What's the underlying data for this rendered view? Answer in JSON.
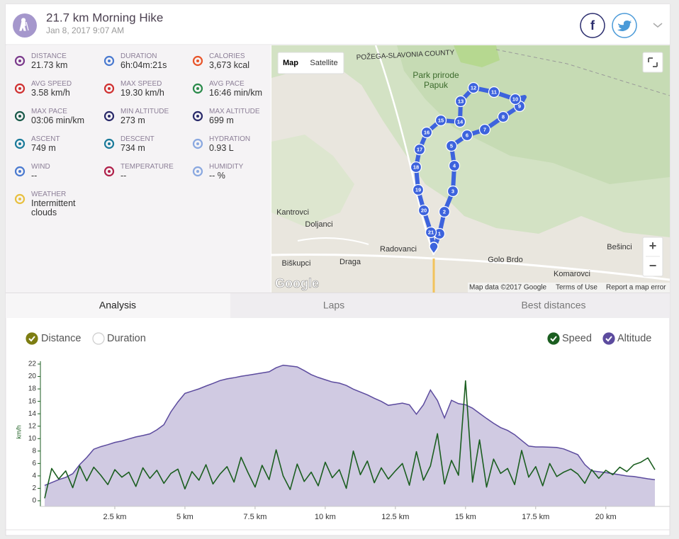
{
  "header": {
    "title": "21.7 km Morning Hike",
    "date": "Jan 8, 2017 9:07 AM",
    "facebook": "f"
  },
  "stats": [
    {
      "label": "DISTANCE",
      "value": "21.73 km"
    },
    {
      "label": "DURATION",
      "value": "6h:04m:21s"
    },
    {
      "label": "CALORIES",
      "value": "3,673 kcal"
    },
    {
      "label": "AVG SPEED",
      "value": "3.58 km/h"
    },
    {
      "label": "MAX SPEED",
      "value": "19.30 km/h"
    },
    {
      "label": "AVG PACE",
      "value": "16:46 min/km"
    },
    {
      "label": "MAX PACE",
      "value": "03:06 min/km"
    },
    {
      "label": "MIN ALTITUDE",
      "value": "273 m"
    },
    {
      "label": "MAX ALTITUDE",
      "value": "699 m"
    },
    {
      "label": "ASCENT",
      "value": "749 m"
    },
    {
      "label": "DESCENT",
      "value": "734 m"
    },
    {
      "label": "HYDRATION",
      "value": "0.93 L"
    },
    {
      "label": "WIND",
      "value": "--"
    },
    {
      "label": "TEMPERATURE",
      "value": "--"
    },
    {
      "label": "HUMIDITY",
      "value": "-- %"
    },
    {
      "label": "WEATHER",
      "value": "Intermittent clouds"
    }
  ],
  "map": {
    "buttons": [
      "Map",
      "Satellite"
    ],
    "zoom": [
      "+",
      "−"
    ],
    "places": [
      "POŽEGA-SLAVONIA COUNTY",
      "Park prirode",
      "Papuk",
      "Kantrovci",
      "Doljanci",
      "Radovanci",
      "Biškupci",
      "Draga",
      "Golo Brdo",
      "Komarovci",
      "Bešinci"
    ],
    "markers": [
      "1",
      "2",
      "3",
      "4",
      "5",
      "6",
      "7",
      "8",
      "9",
      "10",
      "11",
      "12",
      "13",
      "14",
      "15",
      "16",
      "17",
      "18",
      "19",
      "20",
      "21"
    ],
    "logo": "Google",
    "footer": [
      "Map data ©2017 Google",
      "Terms of Use",
      "Report a map error"
    ]
  },
  "tabs": [
    "Analysis",
    "Laps",
    "Best distances"
  ],
  "chart_data": {
    "type": "line",
    "x_modes": [
      "Distance",
      "Duration"
    ],
    "y_label": "km/h",
    "x": [
      0,
      0.25,
      0.5,
      0.75,
      1,
      1.25,
      1.5,
      1.75,
      2,
      2.25,
      2.5,
      2.75,
      3,
      3.25,
      3.5,
      3.75,
      4,
      4.25,
      4.5,
      4.75,
      5,
      5.25,
      5.5,
      5.75,
      6,
      6.25,
      6.5,
      6.75,
      7,
      7.25,
      7.5,
      7.75,
      8,
      8.25,
      8.5,
      8.75,
      9,
      9.25,
      9.5,
      9.75,
      10,
      10.25,
      10.5,
      10.75,
      11,
      11.25,
      11.5,
      11.75,
      12,
      12.25,
      12.5,
      12.75,
      13,
      13.25,
      13.5,
      13.75,
      14,
      14.25,
      14.5,
      14.75,
      15,
      15.25,
      15.5,
      15.75,
      16,
      16.25,
      16.5,
      16.75,
      17,
      17.25,
      17.5,
      17.75,
      18,
      18.25,
      18.5,
      18.75,
      19,
      19.25,
      19.5,
      19.75,
      20,
      20.25,
      20.5,
      20.75,
      21,
      21.25,
      21.5,
      21.75
    ],
    "series": [
      {
        "name": "Speed",
        "color": "#1b5e20",
        "values": [
          0.4,
          5.2,
          3.5,
          4.8,
          2.1,
          5.6,
          3.2,
          5.4,
          4.1,
          2.6,
          5.0,
          3.8,
          4.6,
          2.3,
          5.3,
          3.6,
          4.9,
          2.8,
          4.4,
          5.1,
          1.9,
          4.7,
          3.3,
          5.8,
          2.7,
          4.3,
          5.5,
          3.0,
          7.0,
          4.5,
          2.2,
          5.7,
          3.4,
          8.2,
          4.0,
          1.8,
          5.9,
          3.1,
          4.6,
          2.4,
          6.2,
          3.7,
          5.0,
          2.0,
          8.0,
          4.2,
          6.4,
          2.9,
          5.3,
          3.5,
          4.8,
          6.0,
          2.5,
          7.9,
          3.3,
          5.6,
          10.8,
          2.7,
          6.5,
          4.1,
          19.3,
          3.0,
          9.8,
          2.2,
          6.7,
          4.4,
          5.2,
          2.6,
          8.1,
          3.8,
          5.5,
          2.4,
          6.0,
          3.9,
          4.6,
          5.1,
          4.3,
          2.8,
          5.0,
          3.6,
          4.9,
          4.2,
          5.4,
          4.7,
          5.8,
          6.2,
          6.9,
          5.0
        ]
      },
      {
        "name": "Altitude",
        "color": "#5c4b9e",
        "fill": "#d0cae2",
        "axis": "y2",
        "values": [
          277,
          287,
          297,
          305,
          318,
          350,
          375,
          404,
          413,
          420,
          428,
          433,
          440,
          447,
          452,
          458,
          472,
          490,
          535,
          570,
          600,
          608,
          616,
          626,
          635,
          645,
          651,
          655,
          660,
          664,
          668,
          672,
          676,
          690,
          699,
          696,
          693,
          680,
          666,
          656,
          648,
          640,
          636,
          628,
          615,
          605,
          595,
          583,
          572,
          558,
          562,
          566,
          560,
          527,
          560,
          612,
          575,
          514,
          576,
          564,
          560,
          548,
          530,
          512,
          495,
          480,
          470,
          455,
          435,
          415,
          412,
          412,
          411,
          410,
          405,
          395,
          385,
          350,
          328,
          325,
          322,
          318,
          314,
          310,
          308,
          304,
          300,
          297
        ]
      }
    ],
    "xlim": [
      0,
      21.8
    ],
    "xticks": [
      {
        "value": 2.5,
        "label": "2.5 km"
      },
      {
        "value": 5,
        "label": "5 km"
      },
      {
        "value": 7.5,
        "label": "7.5 km"
      },
      {
        "value": 10,
        "label": "10 km"
      },
      {
        "value": 12.5,
        "label": "12.5 km"
      },
      {
        "value": 15,
        "label": "15 km"
      },
      {
        "value": 17.5,
        "label": "17.5 km"
      },
      {
        "value": 20,
        "label": "20 km"
      }
    ],
    "ylim": [
      0,
      22
    ],
    "yticks": [
      0,
      2,
      4,
      6,
      8,
      10,
      12,
      14,
      16,
      18,
      20,
      22
    ],
    "y2lim": [
      223,
      703
    ]
  }
}
